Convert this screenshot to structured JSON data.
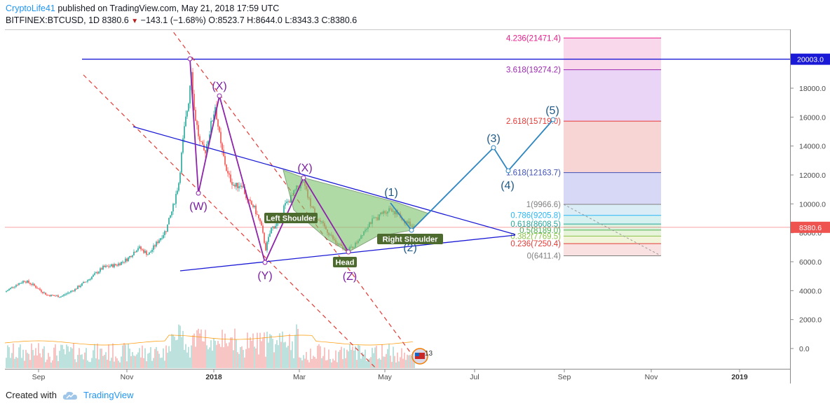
{
  "header": {
    "author": "CryptoLife41",
    "published": " published on TradingView.com, May 21, 2018 17:59 UTC",
    "symbol": "BITFINEX:BTCUSD, 1D",
    "last": "8380.6",
    "change_arrow": "▼",
    "change": "−143.1 (−1.68%)",
    "ohlc": "O:8523.7 H:8644.0 L:8343.3 C:8380.6"
  },
  "price_axis": {
    "ticks": [
      "18000.0",
      "16000.0",
      "14000.0",
      "12000.0",
      "10000.0",
      "8000.0",
      "6000.0",
      "4000.0",
      "2000.0",
      "0.0"
    ],
    "tick_values": [
      18000,
      16000,
      14000,
      12000,
      10000,
      8000,
      6000,
      4000,
      2000,
      0
    ],
    "current_price_label": "8380.6",
    "current_price": 8380.6,
    "line_label": "20003.0",
    "line_price": 20003.0
  },
  "time_axis": {
    "ticks": [
      "Sep",
      "Nov",
      "2018",
      "Mar",
      "May",
      "Jul",
      "Sep",
      "Nov",
      "2019"
    ],
    "bold": [
      "2018",
      "2019"
    ]
  },
  "fib_levels": [
    {
      "label": "4.236(21471.4)",
      "price": 21471.4,
      "color": "#e91e8c"
    },
    {
      "label": "3.618(19274.2)",
      "price": 19274.2,
      "color": "#9c27b0"
    },
    {
      "label": "2.618(15719.0)",
      "price": 15719.0,
      "color": "#e53935"
    },
    {
      "label": "1.618(12163.7)",
      "price": 12163.7,
      "color": "#3f51b5"
    },
    {
      "label": "1(9966.6)",
      "price": 9966.6,
      "color": "#808080"
    },
    {
      "label": "0.786(9205.8)",
      "price": 9205.8,
      "color": "#29b6f6"
    },
    {
      "label": "0.618(8608.5)",
      "price": 8608.5,
      "color": "#26a69a"
    },
    {
      "label": "0.5(8189.0)",
      "price": 8189.0,
      "color": "#4caf50"
    },
    {
      "label": "0.382(7769.5)",
      "price": 7769.5,
      "color": "#8bc34a"
    },
    {
      "label": "0.236(7250.4)",
      "price": 7250.4,
      "color": "#e53935"
    },
    {
      "label": "0(6411.4)",
      "price": 6411.4,
      "color": "#808080"
    }
  ],
  "wave_labels": {
    "w": "(W)",
    "x1": "(X)",
    "y": "(Y)",
    "x2": "(X)",
    "z": "(Z)",
    "one": "(1)",
    "two": "(2)",
    "three": "(3)",
    "four": "(4)",
    "five": "(5)"
  },
  "pattern_labels": {
    "left_shoulder": "Left Shoulder",
    "head": "Head",
    "right_shoulder": "Right Shoulder"
  },
  "badge": "13",
  "footer": {
    "created_with": "Created with",
    "brand": "TradingView"
  },
  "colors": {
    "up_candle": "#26a69a",
    "down_candle": "#ef5350",
    "trendline": "#1a1ad6",
    "projection": "#2e86c1",
    "wxyxz": "#8e24aa",
    "channel": "#e53935",
    "pattern_fill": "#7cc36b",
    "current_price": "#ef5350"
  }
}
